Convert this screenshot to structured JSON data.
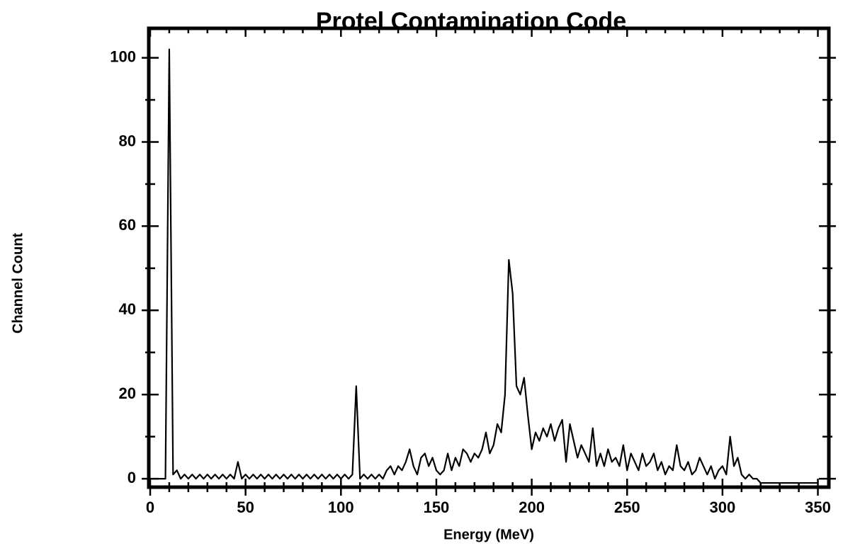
{
  "chart_data": {
    "type": "line",
    "title": "Protel Contamination Code",
    "xlabel": "Energy (MeV)",
    "ylabel": "Channel Count",
    "x": [
      0,
      2,
      4,
      6,
      8,
      10,
      12,
      14,
      16,
      18,
      20,
      22,
      24,
      26,
      28,
      30,
      32,
      34,
      36,
      38,
      40,
      42,
      44,
      46,
      48,
      50,
      52,
      54,
      56,
      58,
      60,
      62,
      64,
      66,
      68,
      70,
      72,
      74,
      76,
      78,
      80,
      82,
      84,
      86,
      88,
      90,
      92,
      94,
      96,
      98,
      100,
      102,
      104,
      106,
      108,
      110,
      112,
      114,
      116,
      118,
      120,
      122,
      124,
      126,
      128,
      130,
      132,
      134,
      136,
      138,
      140,
      142,
      144,
      146,
      148,
      150,
      152,
      154,
      156,
      158,
      160,
      162,
      164,
      166,
      168,
      170,
      172,
      174,
      176,
      178,
      180,
      182,
      184,
      186,
      188,
      190,
      192,
      194,
      196,
      198,
      200,
      202,
      204,
      206,
      208,
      210,
      212,
      214,
      216,
      218,
      220,
      222,
      224,
      226,
      228,
      230,
      232,
      234,
      236,
      238,
      240,
      242,
      244,
      246,
      248,
      250,
      252,
      254,
      256,
      258,
      260,
      262,
      264,
      266,
      268,
      270,
      272,
      274,
      276,
      278,
      280,
      282,
      284,
      286,
      288,
      290,
      292,
      294,
      296,
      298,
      300,
      302,
      304,
      306,
      308,
      310,
      312,
      314,
      316,
      318,
      320,
      322,
      324,
      326,
      328,
      330,
      332,
      334,
      336,
      338,
      340,
      342,
      344,
      346,
      348,
      350
    ],
    "values": [
      0,
      0,
      0,
      0,
      0,
      102,
      1,
      2,
      0,
      1,
      0,
      1,
      0,
      1,
      0,
      1,
      0,
      1,
      0,
      1,
      0,
      1,
      0,
      4,
      0,
      1,
      0,
      1,
      0,
      1,
      0,
      1,
      0,
      1,
      0,
      1,
      0,
      1,
      0,
      1,
      0,
      1,
      0,
      1,
      0,
      1,
      0,
      1,
      0,
      1,
      0,
      1,
      0,
      1,
      22,
      0,
      1,
      0,
      1,
      0,
      1,
      0,
      2,
      3,
      1,
      3,
      2,
      4,
      7,
      3,
      1,
      5,
      6,
      3,
      5,
      2,
      1,
      2,
      6,
      2,
      5,
      3,
      7,
      6,
      4,
      6,
      5,
      7,
      11,
      6,
      8,
      13,
      11,
      20,
      52,
      44,
      22,
      20,
      24,
      15,
      7,
      11,
      9,
      12,
      10,
      13,
      9,
      12,
      14,
      4,
      13,
      9,
      5,
      8,
      6,
      4,
      12,
      3,
      6,
      3,
      7,
      4,
      5,
      3,
      8,
      2,
      6,
      4,
      2,
      6,
      3,
      4,
      6,
      2,
      4,
      1,
      3,
      2,
      8,
      3,
      2,
      4,
      1,
      2,
      5,
      3,
      1,
      3,
      0,
      2,
      3,
      1,
      10,
      3,
      5,
      1,
      0,
      1,
      0,
      0,
      -1,
      -1,
      -1,
      -1,
      -1,
      -1,
      -1,
      -1,
      -1,
      -1,
      -1,
      -1,
      -1,
      -1,
      -1,
      -1
    ],
    "color": "#000000",
    "xlim": [
      0,
      355
    ],
    "ylim": [
      -2,
      107
    ],
    "xticks": [
      0,
      50,
      100,
      150,
      200,
      250,
      300,
      350
    ],
    "yticks": [
      0,
      20,
      40,
      60,
      80,
      100
    ],
    "xticks_minor": [
      10,
      20,
      30,
      40,
      60,
      70,
      80,
      90,
      110,
      120,
      130,
      140,
      160,
      170,
      180,
      190,
      210,
      220,
      230,
      240,
      260,
      270,
      280,
      290,
      310,
      320,
      330,
      340
    ],
    "yticks_minor": [
      10,
      30,
      50,
      70,
      90
    ]
  }
}
